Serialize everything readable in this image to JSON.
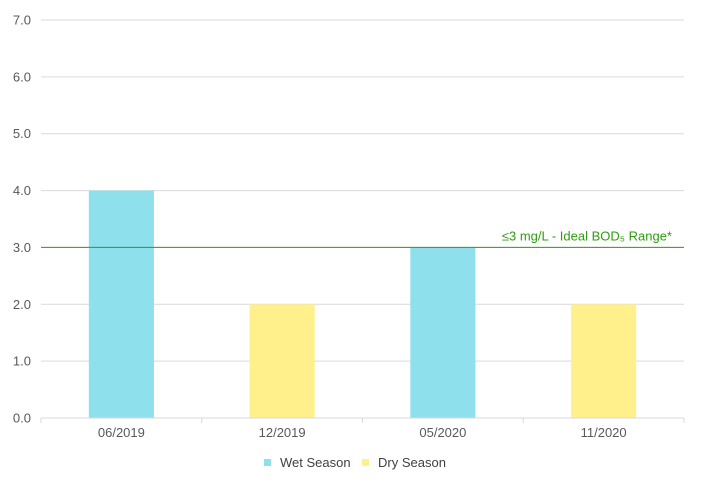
{
  "chart_data": {
    "type": "bar",
    "categories": [
      "06/2019",
      "12/2019",
      "05/2020",
      "11/2020"
    ],
    "values": [
      4.0,
      2.0,
      3.0,
      2.0
    ],
    "bar_series": [
      "Wet Season",
      "Dry Season",
      "Wet Season",
      "Dry Season"
    ],
    "legend": [
      {
        "name": "Wet Season",
        "color": "#8EE0EC"
      },
      {
        "name": "Dry Season",
        "color": "#FFF08C"
      }
    ],
    "legend_position": "bottom",
    "ylim": [
      0,
      7
    ],
    "yticks": [
      "0.0",
      "1.0",
      "2.0",
      "3.0",
      "4.0",
      "5.0",
      "6.0",
      "7.0"
    ],
    "grid": true,
    "reference_line": {
      "value": 3.0,
      "label": "≤3 mg/L - Ideal BOD₅ Range*",
      "color": "#2E9E10"
    }
  }
}
